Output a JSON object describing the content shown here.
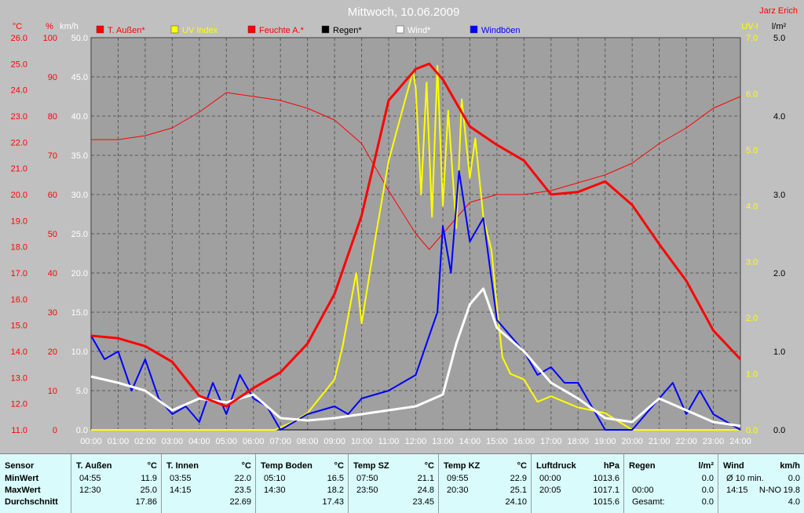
{
  "header": {
    "title": "Mittwoch, 10.06.2009",
    "author": "Jarz Erich"
  },
  "chart_data": {
    "type": "line",
    "x_ticks": [
      "00:00",
      "01:00",
      "02:00",
      "03:00",
      "04:00",
      "05:00",
      "06:00",
      "07:00",
      "08:00",
      "09:00",
      "10:00",
      "11:00",
      "12:00",
      "13:00",
      "14:00",
      "15:00",
      "16:00",
      "17:00",
      "18:00",
      "19:00",
      "20:00",
      "21:00",
      "22:00",
      "23:00",
      "24:00"
    ],
    "xlim": [
      0,
      24
    ],
    "grid": true,
    "legend_position": "top",
    "axes": {
      "temp": {
        "unit": "°C",
        "range": [
          11.0,
          26.0
        ],
        "ticks": [
          "26.0",
          "25.0",
          "24.0",
          "23.0",
          "22.0",
          "21.0",
          "20.0",
          "19.0",
          "18.0",
          "17.0",
          "16.0",
          "15.0",
          "14.0",
          "13.0",
          "12.0",
          "11.0"
        ]
      },
      "humidity": {
        "unit": "%",
        "range": [
          0,
          100
        ],
        "ticks": [
          "100",
          "90",
          "80",
          "70",
          "60",
          "50",
          "40",
          "30",
          "20",
          "10",
          "0"
        ]
      },
      "wind": {
        "unit": "km/h",
        "range": [
          0,
          50
        ],
        "ticks": [
          "50.0",
          "45.0",
          "40.0",
          "35.0",
          "30.0",
          "25.0",
          "20.0",
          "15.0",
          "10.0",
          "5.0",
          "0.0"
        ]
      },
      "uv": {
        "unit": "UV-I",
        "range": [
          0,
          7
        ],
        "ticks": [
          "7.0",
          "6.0",
          "5.0",
          "4.0",
          "3.0",
          "2.0",
          "1.0",
          "0.0"
        ]
      },
      "rain": {
        "unit": "l/m²",
        "range": [
          0,
          5
        ],
        "ticks": [
          "5.0",
          "4.0",
          "3.0",
          "2.0",
          "1.0",
          "0.0"
        ]
      }
    },
    "series": [
      {
        "name": "T. Außen*",
        "color": "#ff0000",
        "axis": "temp",
        "width": 3,
        "points": [
          [
            0,
            14.6
          ],
          [
            1,
            14.5
          ],
          [
            2,
            14.2
          ],
          [
            3,
            13.6
          ],
          [
            4,
            12.3
          ],
          [
            5,
            11.9
          ],
          [
            6,
            12.6
          ],
          [
            7,
            13.2
          ],
          [
            8,
            14.3
          ],
          [
            9,
            16.2
          ],
          [
            10,
            19.2
          ],
          [
            11,
            23.6
          ],
          [
            12,
            24.8
          ],
          [
            12.5,
            25.0
          ],
          [
            13,
            24.4
          ],
          [
            14,
            22.6
          ],
          [
            15,
            21.9
          ],
          [
            16,
            21.3
          ],
          [
            17,
            20.0
          ],
          [
            18,
            20.1
          ],
          [
            19,
            20.5
          ],
          [
            20,
            19.6
          ],
          [
            21,
            18.1
          ],
          [
            22,
            16.7
          ],
          [
            23,
            14.8
          ],
          [
            24,
            13.7
          ]
        ]
      },
      {
        "name": "UV Index",
        "color": "#ffff00",
        "axis": "uv",
        "width": 2,
        "points": [
          [
            0,
            0
          ],
          [
            6.8,
            0
          ],
          [
            7.5,
            0.15
          ],
          [
            8,
            0.3
          ],
          [
            8.5,
            0.6
          ],
          [
            9,
            0.9
          ],
          [
            9.3,
            1.5
          ],
          [
            9.8,
            2.8
          ],
          [
            10,
            1.9
          ],
          [
            10.3,
            2.8
          ],
          [
            10.5,
            3.4
          ],
          [
            11,
            4.8
          ],
          [
            11.5,
            5.7
          ],
          [
            11.9,
            6.4
          ],
          [
            12,
            6.1
          ],
          [
            12.2,
            4.2
          ],
          [
            12.4,
            6.2
          ],
          [
            12.6,
            3.8
          ],
          [
            12.8,
            6.5
          ],
          [
            13,
            4.0
          ],
          [
            13.2,
            5.7
          ],
          [
            13.5,
            3.6
          ],
          [
            13.7,
            5.9
          ],
          [
            14,
            4.5
          ],
          [
            14.2,
            5.2
          ],
          [
            14.5,
            3.8
          ],
          [
            14.8,
            3.2
          ],
          [
            15,
            2.2
          ],
          [
            15.2,
            1.3
          ],
          [
            15.5,
            1.0
          ],
          [
            16,
            0.9
          ],
          [
            16.5,
            0.5
          ],
          [
            17,
            0.6
          ],
          [
            17.5,
            0.5
          ],
          [
            18,
            0.4
          ],
          [
            19,
            0.3
          ],
          [
            20,
            0
          ],
          [
            24,
            0
          ]
        ]
      },
      {
        "name": "Feuchte A.*",
        "color": "#ff0000",
        "axis": "humidity",
        "width": 1,
        "points": [
          [
            0,
            74
          ],
          [
            1,
            74
          ],
          [
            2,
            75
          ],
          [
            3,
            77
          ],
          [
            4,
            81
          ],
          [
            5,
            86
          ],
          [
            6,
            85
          ],
          [
            7,
            84
          ],
          [
            8,
            82
          ],
          [
            9,
            79
          ],
          [
            10,
            73
          ],
          [
            11,
            61
          ],
          [
            12,
            50
          ],
          [
            12.5,
            46
          ],
          [
            13,
            50
          ],
          [
            14,
            58
          ],
          [
            15,
            60
          ],
          [
            16,
            60
          ],
          [
            17,
            61
          ],
          [
            18,
            63
          ],
          [
            19,
            65
          ],
          [
            20,
            68
          ],
          [
            21,
            73
          ],
          [
            22,
            77
          ],
          [
            23,
            82
          ],
          [
            24,
            85
          ]
        ]
      },
      {
        "name": "Regen*",
        "color": "#000000",
        "axis": "rain",
        "width": 1,
        "points": [
          [
            0,
            0
          ],
          [
            24,
            0
          ]
        ]
      },
      {
        "name": "Wind*",
        "color": "#ffffff",
        "axis": "wind",
        "width": 3,
        "points": [
          [
            0,
            6.8
          ],
          [
            1,
            6.0
          ],
          [
            2,
            5.0
          ],
          [
            3,
            2.5
          ],
          [
            4,
            4.0
          ],
          [
            5,
            3.5
          ],
          [
            6,
            4.5
          ],
          [
            7,
            1.5
          ],
          [
            8,
            1.2
          ],
          [
            9,
            1.5
          ],
          [
            10,
            2.0
          ],
          [
            11,
            2.5
          ],
          [
            12,
            3.0
          ],
          [
            13,
            4.5
          ],
          [
            13.5,
            11.0
          ],
          [
            14,
            16.0
          ],
          [
            14.5,
            18.0
          ],
          [
            15,
            13.0
          ],
          [
            16,
            10.0
          ],
          [
            17,
            6.0
          ],
          [
            18,
            4.0
          ],
          [
            19,
            1.5
          ],
          [
            20,
            1.0
          ],
          [
            21,
            4.0
          ],
          [
            22,
            2.5
          ],
          [
            23,
            1.0
          ],
          [
            24,
            0.5
          ]
        ]
      },
      {
        "name": "Windböen",
        "color": "#0000ff",
        "axis": "wind",
        "width": 2,
        "points": [
          [
            0,
            12
          ],
          [
            0.5,
            9
          ],
          [
            1,
            10
          ],
          [
            1.5,
            5
          ],
          [
            2,
            9
          ],
          [
            2.5,
            4
          ],
          [
            3,
            2
          ],
          [
            3.5,
            3
          ],
          [
            4,
            1
          ],
          [
            4.5,
            6
          ],
          [
            5,
            2
          ],
          [
            5.5,
            7
          ],
          [
            6,
            4
          ],
          [
            6.5,
            3
          ],
          [
            7,
            0
          ],
          [
            8,
            2
          ],
          [
            9,
            3
          ],
          [
            9.5,
            2
          ],
          [
            10,
            4
          ],
          [
            11,
            5
          ],
          [
            12,
            7
          ],
          [
            12.5,
            12
          ],
          [
            12.8,
            15
          ],
          [
            13,
            26
          ],
          [
            13.3,
            20
          ],
          [
            13.6,
            33
          ],
          [
            14,
            24
          ],
          [
            14.5,
            27
          ],
          [
            15,
            14
          ],
          [
            15.5,
            12
          ],
          [
            16,
            10
          ],
          [
            16.5,
            7
          ],
          [
            17,
            8
          ],
          [
            17.5,
            6
          ],
          [
            18,
            6
          ],
          [
            18.5,
            3
          ],
          [
            19,
            0
          ],
          [
            20,
            0
          ],
          [
            21,
            4
          ],
          [
            21.5,
            6
          ],
          [
            22,
            2
          ],
          [
            22.5,
            5
          ],
          [
            23,
            2
          ],
          [
            24,
            0
          ]
        ]
      }
    ]
  },
  "table": [
    {
      "title": "Sensor",
      "unit": "",
      "rows": [
        [
          "MinWert",
          "",
          ""
        ],
        [
          "MaxWert",
          "",
          ""
        ],
        [
          "Durchschnitt",
          "",
          ""
        ]
      ]
    },
    {
      "title": "T. Außen",
      "unit": "°C",
      "rows": [
        [
          "04:55",
          "",
          "11.9"
        ],
        [
          "12:30",
          "",
          "25.0"
        ],
        [
          "",
          "",
          "17.86"
        ]
      ]
    },
    {
      "title": "T. Innen",
      "unit": "°C",
      "rows": [
        [
          "03:55",
          "",
          "22.0"
        ],
        [
          "14:15",
          "",
          "23.5"
        ],
        [
          "",
          "",
          "22.69"
        ]
      ]
    },
    {
      "title": "Temp Boden",
      "unit": "°C",
      "rows": [
        [
          "05:10",
          "",
          "16.5"
        ],
        [
          "14:30",
          "",
          "18.2"
        ],
        [
          "",
          "",
          "17.43"
        ]
      ]
    },
    {
      "title": "Temp SZ",
      "unit": "°C",
      "rows": [
        [
          "07:50",
          "",
          "21.1"
        ],
        [
          "23:50",
          "",
          "24.8"
        ],
        [
          "",
          "",
          "23.45"
        ]
      ]
    },
    {
      "title": "Temp KZ",
      "unit": "°C",
      "rows": [
        [
          "09:55",
          "",
          "22.9"
        ],
        [
          "20:30",
          "",
          "25.1"
        ],
        [
          "",
          "",
          "24.10"
        ]
      ]
    },
    {
      "title": "Luftdruck",
      "unit": "hPa",
      "rows": [
        [
          "00:00",
          "",
          "1013.6"
        ],
        [
          "20:05",
          "",
          "1017.1"
        ],
        [
          "",
          "",
          "1015.6"
        ]
      ]
    },
    {
      "title": "Regen",
      "unit": "l/m²",
      "rows": [
        [
          "",
          "",
          "0.0"
        ],
        [
          "00:00",
          "",
          "0.0"
        ],
        [
          "Gesamt:",
          "",
          "0.0"
        ]
      ]
    },
    {
      "title": "Wind",
      "unit": "km/h",
      "rows": [
        [
          "Ø 10 min.",
          "",
          "0.0"
        ],
        [
          "14:15",
          "N-NO",
          "19.8"
        ],
        [
          "",
          "",
          "4.0"
        ]
      ]
    }
  ]
}
